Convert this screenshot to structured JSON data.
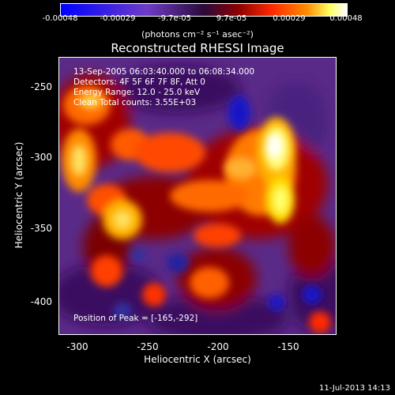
{
  "colorbar": {
    "ticks": [
      "-0.00048",
      "-0.00029",
      "-9.7e-05",
      "9.7e-05",
      "0.00029",
      "0.00048"
    ],
    "units": "(photons cm⁻² s⁻¹ asec⁻²)"
  },
  "title": "Reconstructed RHESSI Image",
  "info": {
    "time": "13-Sep-2005 06:03:40.000 to 06:08:34.000",
    "detectors": "Detectors: 4F 5F 6F 7F 8F, Att 0",
    "energy": "Energy Range: 12.0 - 25.0 keV",
    "counts": "Clean   Total counts: 3.55E+03",
    "peak": "Position of Peak = [-165,-292]"
  },
  "axes": {
    "xlabel": "Heliocentric X (arcsec)",
    "ylabel": "Heliocentric Y (arcsec)",
    "xticks": [
      "-300",
      "-250",
      "-200",
      "-150"
    ],
    "yticks": [
      "-250",
      "-300",
      "-350",
      "-400"
    ]
  },
  "timestamp": "11-Jul-2013 14:13"
}
